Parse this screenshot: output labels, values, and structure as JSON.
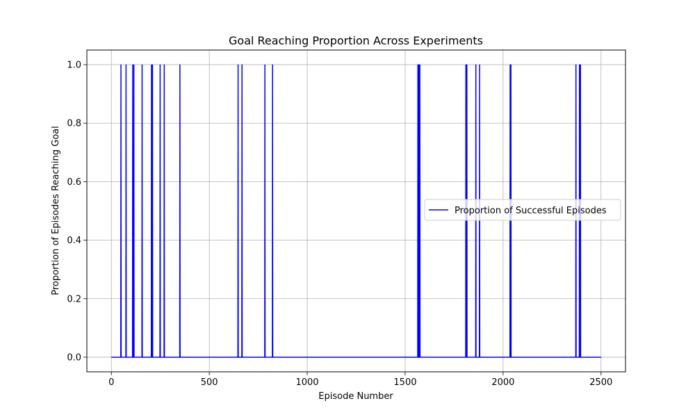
{
  "chart_data": {
    "type": "line",
    "title": "Goal Reaching Proportion Across Experiments",
    "xlabel": "Episode Number",
    "ylabel": "Proportion of Episodes Reaching Goal",
    "xlim": [
      -125,
      2625
    ],
    "ylim": [
      -0.05,
      1.05
    ],
    "xticks": [
      0,
      500,
      1000,
      1500,
      2000,
      2500
    ],
    "yticks": [
      0.0,
      0.2,
      0.4,
      0.6,
      0.8,
      1.0
    ],
    "xtick_labels": [
      "0",
      "500",
      "1000",
      "1500",
      "2000",
      "2500"
    ],
    "ytick_labels": [
      "0.0",
      "0.2",
      "0.4",
      "0.6",
      "0.8",
      "1.0"
    ],
    "grid": true,
    "legend_position": "center-right",
    "x_range": [
      0,
      2500
    ],
    "baseline": 0,
    "series": [
      {
        "name": "Proportion of Successful Episodes",
        "color": "#0000ff",
        "success_episodes": [
          49,
          75,
          109,
          115,
          157,
          205,
          210,
          249,
          270,
          350,
          647,
          667,
          784,
          823,
          1565,
          1570,
          1575,
          1810,
          1815,
          1861,
          1880,
          2036,
          2040,
          2372,
          2390,
          2395
        ],
        "success_value": 1.0
      }
    ]
  }
}
